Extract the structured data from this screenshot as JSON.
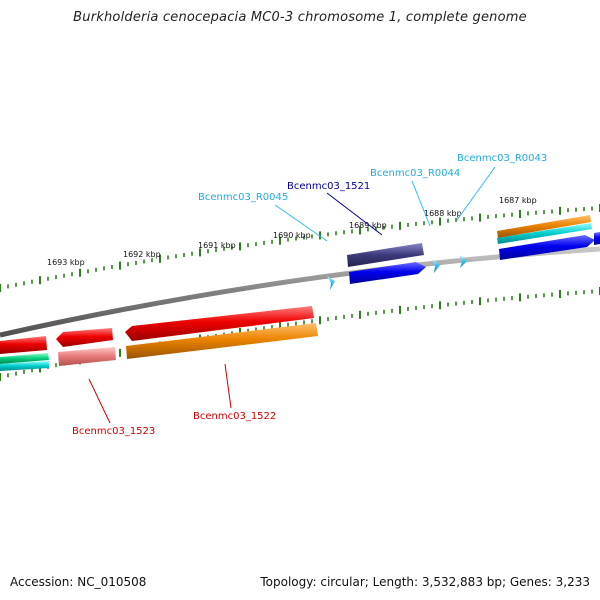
{
  "title": "Burkholderia cenocepacia MC0-3 chromosome 1, complete genome",
  "footer": {
    "accession": "Accession: NC_010508",
    "topology": "Topology: circular; Length: 3,532,883 bp; Genes: 3,233"
  },
  "colors": {
    "backbone": "#7f7f7f",
    "tick": "#2e7d1e",
    "cds_forward": "#0000e6",
    "trna": "#33bbee",
    "gene_red": "#e60000",
    "gene_orange": "#e67e00",
    "gene_teal": "#00c8c8",
    "gene_pink": "#e87878",
    "gene_green": "#00cc7a",
    "gene_purple": "#3c3a7a",
    "label_red": "#cc0000",
    "label_blue": "#000099",
    "label_cyan": "#22aadd"
  },
  "scale_labels": [
    "1687 kbp",
    "1688 kbp",
    "1689 kbp",
    "1690 kbp",
    "1691 kbp",
    "1692 kbp",
    "1693 kbp"
  ],
  "gene_labels": {
    "r0043": "Bcenmc03_R0043",
    "r0044": "Bcenmc03_R0044",
    "r0045": "Bcenmc03_R0045",
    "g1521": "Bcenmc03_1521",
    "g1522": "Bcenmc03_1522",
    "g1523": "Bcenmc03_1523"
  }
}
